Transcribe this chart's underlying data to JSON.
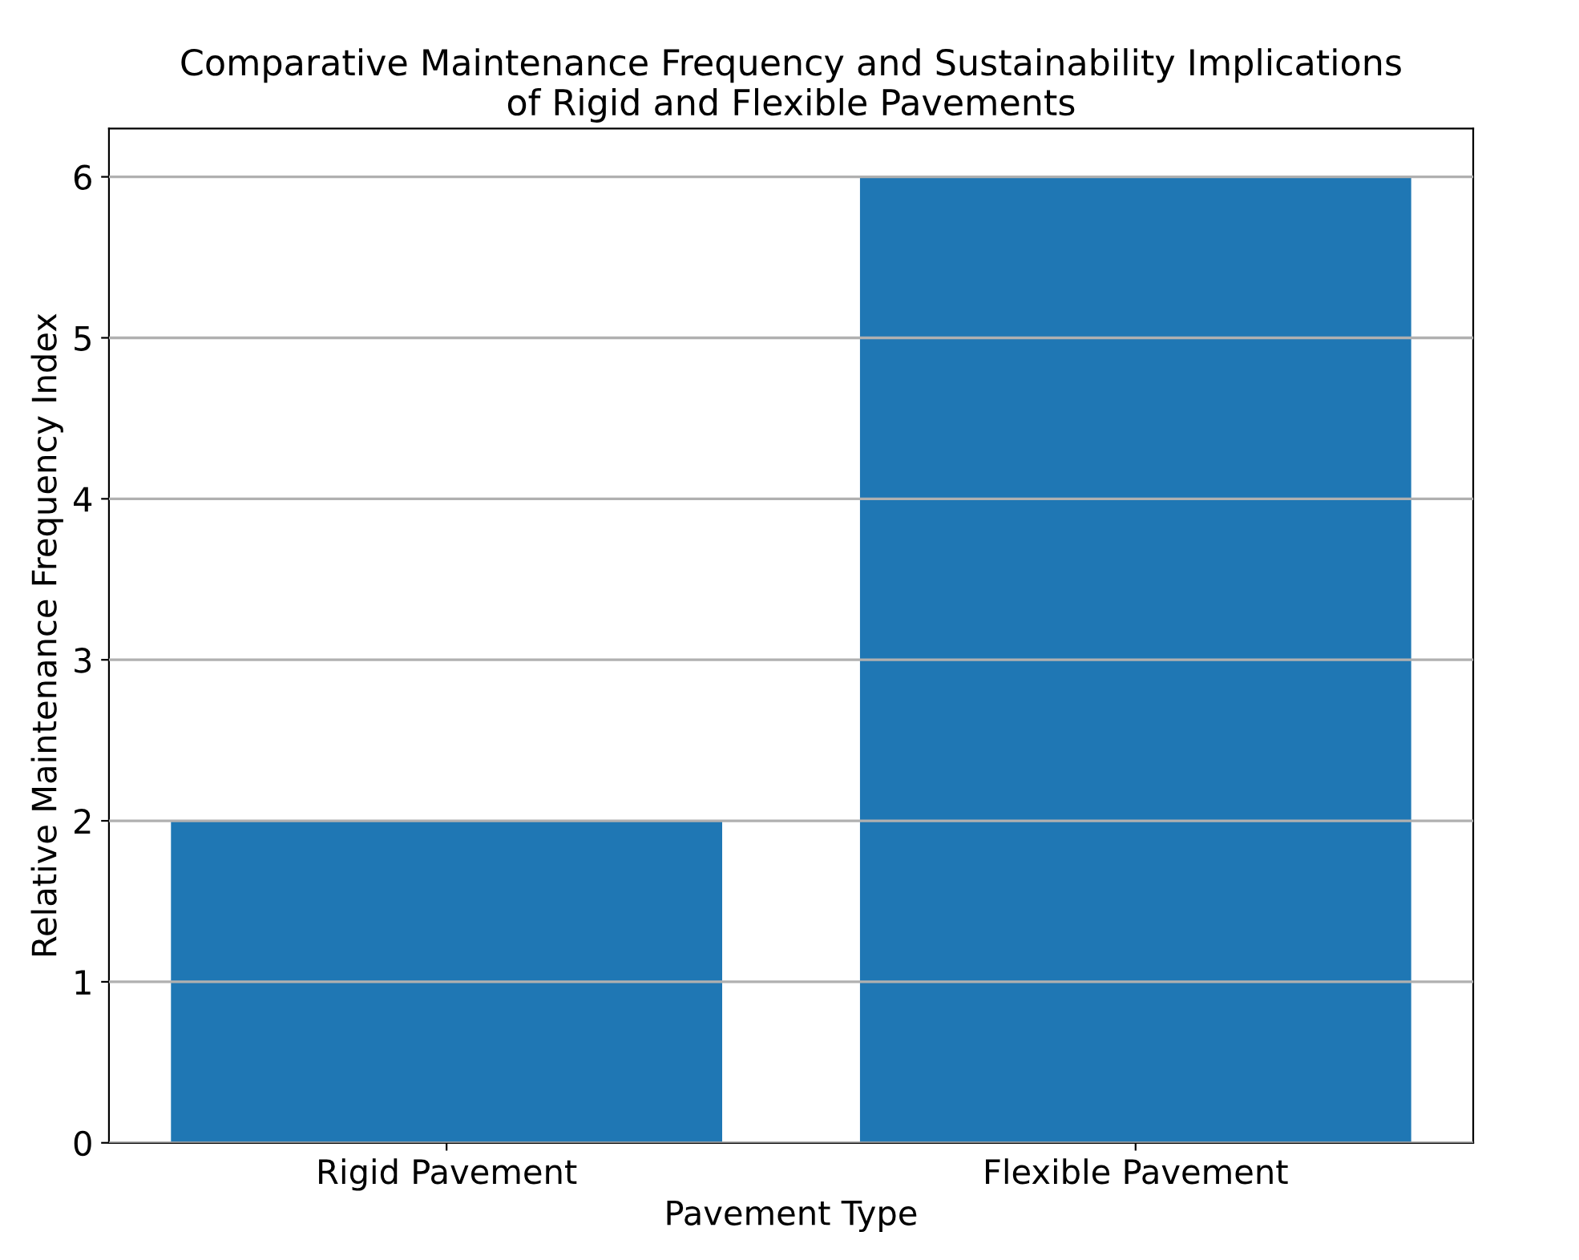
{
  "chart_data": {
    "type": "bar",
    "title": "Comparative Maintenance Frequency and Sustainability Implications\nof Rigid and Flexible Pavements",
    "xlabel": "Pavement Type",
    "ylabel": "Relative Maintenance Frequency Index",
    "categories": [
      "Rigid Pavement",
      "Flexible Pavement"
    ],
    "values": [
      2,
      6
    ],
    "color": "#1f77b4",
    "ylim": [
      0,
      6.3
    ],
    "yticks": [
      0,
      1,
      2,
      3,
      4,
      5,
      6
    ],
    "grid": "y"
  }
}
